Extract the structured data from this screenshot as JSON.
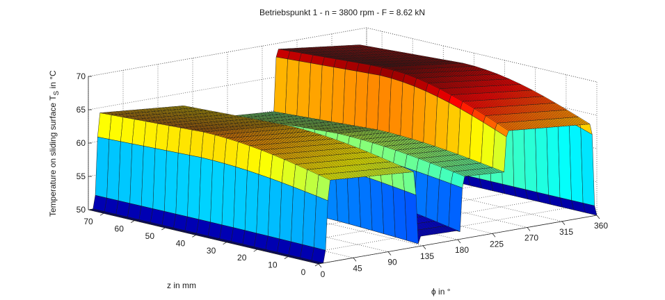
{
  "chart_data": {
    "type": "surface",
    "title": "Betriebspunkt 1 - n = 3800 rpm - F = 8.62 kN",
    "xlabel": "ϕ in °",
    "ylabel": "z in mm",
    "zlabel": "Temperature on sliding surface T",
    "zlabel_sub": "S",
    "zlabel_suffix": " in °C",
    "x_ticks": [
      "0",
      "45",
      "90",
      "135",
      "180",
      "225",
      "270",
      "315",
      "360"
    ],
    "y_ticks": [
      "0",
      "10",
      "20",
      "30",
      "40",
      "50",
      "60",
      "70"
    ],
    "z_ticks": [
      "50",
      "55",
      "60",
      "65",
      "70"
    ],
    "xlim": [
      0,
      360
    ],
    "ylim": [
      0,
      75
    ],
    "zlim": [
      50,
      70
    ],
    "colormap": "jet",
    "grid": true,
    "ridges": [
      {
        "phi_start": 8,
        "phi_end": 128,
        "peak_at_z_min": 62.5,
        "peak_at_z_mid": 65.3,
        "peak_at_z_max": 64.5,
        "side_level": 51.2
      },
      {
        "phi_start": 128,
        "phi_end": 182,
        "peak_at_z_min": 51.5,
        "peak_at_z_mid": 54.0,
        "peak_at_z_max": 53.5,
        "side_level": 50.0
      },
      {
        "phi_start": 182,
        "phi_end": 292,
        "peak_at_z_min": 59.5,
        "peak_at_z_mid": 61.5,
        "peak_at_z_max": 60.5,
        "side_level": 50.5
      },
      {
        "phi_start": 238,
        "phi_end": 357,
        "peak_at_z_min": 65.3,
        "peak_at_z_mid": 70.5,
        "peak_at_z_max": 69.5,
        "side_level": 51.5
      }
    ]
  }
}
